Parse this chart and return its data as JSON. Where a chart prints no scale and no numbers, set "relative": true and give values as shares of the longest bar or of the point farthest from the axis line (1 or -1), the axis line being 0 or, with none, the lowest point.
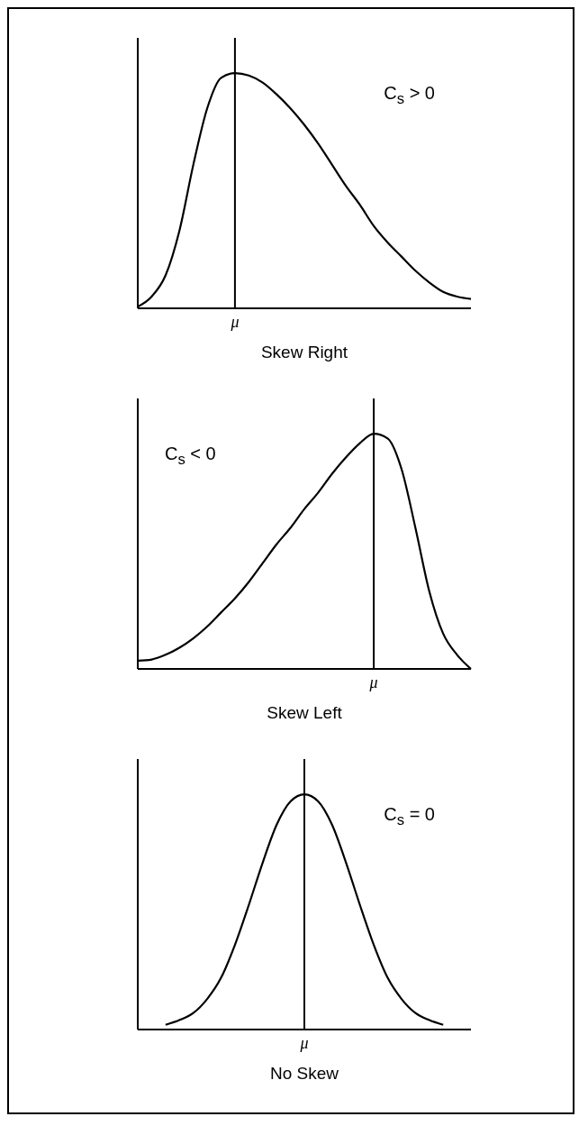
{
  "chart_data": [
    {
      "type": "line",
      "relative": true,
      "xlabel": "Skew Right",
      "annotations": [
        "C$_{s}$ > 0",
        {
          "text": "μ"
        }
      ],
      "categories": [
        null,
        null,
        null,
        null,
        null,
        null,
        null,
        null,
        null,
        null,
        null,
        null,
        null,
        null,
        null,
        null,
        null,
        null,
        null,
        null,
        null,
        null,
        null,
        null,
        null
      ],
      "series": [
        {
          "color": "#000000",
          "values": [
            0.007,
            0.05,
            0.14,
            0.33,
            0.61,
            0.85,
            0.98,
            1.0,
            0.99,
            0.96,
            0.91,
            0.85,
            0.78,
            0.7,
            0.61,
            0.52,
            0.44,
            0.35,
            0.28,
            0.22,
            0.16,
            0.11,
            0.07,
            0.05,
            0.04
          ]
        }
      ],
      "grid": false,
      "legend": false,
      "marker": "none",
      "line_style": "solid"
    },
    {
      "type": "line",
      "relative": true,
      "xlabel": "Skew Left",
      "annotations": [
        "C$_{s}$ < 0",
        {
          "text": "μ"
        }
      ],
      "categories": [
        null,
        null,
        null,
        null,
        null,
        null,
        null,
        null,
        null,
        null,
        null,
        null,
        null,
        null,
        null,
        null,
        null,
        null,
        null,
        null,
        null,
        null,
        null,
        null,
        null
      ],
      "series": [
        {
          "color": "#000000",
          "values": [
            0.035,
            0.04,
            0.06,
            0.09,
            0.13,
            0.18,
            0.24,
            0.3,
            0.37,
            0.45,
            0.53,
            0.6,
            0.68,
            0.75,
            0.83,
            0.9,
            0.96,
            1.0,
            0.98,
            0.85,
            0.6,
            0.33,
            0.15,
            0.06,
            0.0
          ]
        }
      ],
      "grid": false,
      "legend": false,
      "marker": "none",
      "line_style": "solid"
    },
    {
      "type": "line",
      "relative": true,
      "xlabel": "No Skew",
      "annotations": [
        "C$_{s}$ = 0",
        {
          "text": "μ"
        }
      ],
      "categories": [
        null,
        null,
        null,
        null,
        null,
        null,
        null,
        null,
        null,
        null,
        null,
        null,
        null,
        null,
        null,
        null,
        null,
        null,
        null,
        null,
        null,
        null,
        null,
        null,
        null
      ],
      "series": [
        {
          "color": "#000000",
          "values": [
            null,
            null,
            0.02,
            0.04,
            0.07,
            0.13,
            0.22,
            0.36,
            0.53,
            0.71,
            0.87,
            0.97,
            1.0,
            0.97,
            0.87,
            0.71,
            0.53,
            0.36,
            0.22,
            0.13,
            0.07,
            0.04,
            0.02,
            null,
            null
          ]
        }
      ],
      "grid": false,
      "legend": false,
      "marker": "none",
      "line_style": "solid"
    }
  ]
}
